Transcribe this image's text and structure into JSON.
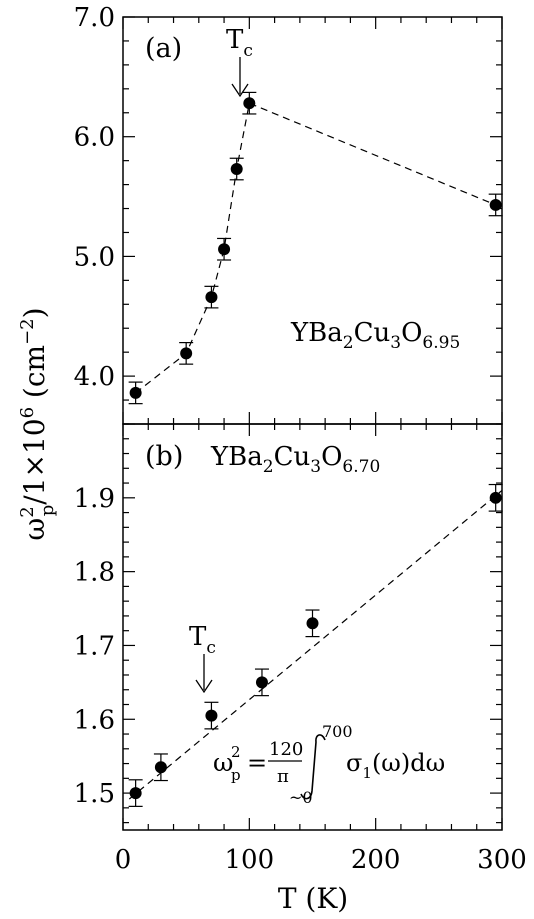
{
  "chart_data": [
    {
      "type": "scatter",
      "panel_label": "(a)",
      "sample_label": {
        "base": "YBa",
        "sub1": "2",
        "mid": "Cu",
        "sub2": "3",
        "o": "O",
        "sub3": "6.95"
      },
      "tc_label": {
        "main": "T",
        "sub": "c"
      },
      "tc_value": 93,
      "xlim": [
        0,
        300
      ],
      "ylim": [
        3.6,
        7.0
      ],
      "y_ticks": [
        "4.0",
        "5.0",
        "6.0",
        "7.0"
      ],
      "points": [
        {
          "x": 10,
          "y": 3.86,
          "err": 0.09
        },
        {
          "x": 50,
          "y": 4.19,
          "err": 0.09
        },
        {
          "x": 70,
          "y": 4.66,
          "err": 0.09
        },
        {
          "x": 80,
          "y": 5.06,
          "err": 0.09
        },
        {
          "x": 90,
          "y": 5.73,
          "err": 0.09
        },
        {
          "x": 100,
          "y": 6.28,
          "err": 0.09
        },
        {
          "x": 295,
          "y": 5.43,
          "err": 0.09
        }
      ],
      "fit_line": [
        [
          10,
          3.86
        ],
        [
          50,
          4.19
        ],
        [
          70,
          4.66
        ],
        [
          80,
          5.06
        ],
        [
          90,
          5.73
        ],
        [
          100,
          6.28
        ],
        [
          295,
          5.43
        ]
      ]
    },
    {
      "type": "scatter",
      "panel_label": "(b)",
      "sample_label": {
        "base": "YBa",
        "sub1": "2",
        "mid": "Cu",
        "sub2": "3",
        "o": "O",
        "sub3": "6.70"
      },
      "tc_label": {
        "main": "T",
        "sub": "c"
      },
      "tc_value": 63,
      "xlim": [
        0,
        300
      ],
      "ylim": [
        1.45,
        2.0
      ],
      "y_ticks": [
        "1.5",
        "1.6",
        "1.7",
        "1.8",
        "1.9"
      ],
      "points": [
        {
          "x": 10,
          "y": 1.5,
          "err": 0.018
        },
        {
          "x": 30,
          "y": 1.535,
          "err": 0.018
        },
        {
          "x": 70,
          "y": 1.605,
          "err": 0.018
        },
        {
          "x": 110,
          "y": 1.65,
          "err": 0.018
        },
        {
          "x": 150,
          "y": 1.73,
          "err": 0.018
        },
        {
          "x": 295,
          "y": 1.9,
          "err": 0.018
        }
      ],
      "fit_line": [
        [
          5,
          1.492
        ],
        [
          300,
          1.91
        ]
      ]
    }
  ],
  "x_ticks": [
    "0",
    "100",
    "200",
    "300"
  ],
  "xlabel": "T (K)",
  "ylabel": {
    "omega": "ω",
    "sup": "2",
    "sub": "p",
    "rest": "/1×10",
    "exp": "6",
    "units": " (cm",
    "units_exp": "−2",
    "close": ")"
  },
  "formula": {
    "lhs": "ω",
    "lhs_sup": "2",
    "lhs_sub": "p",
    "eq": "=",
    "num": "120",
    "den": "π",
    "integrand": "σ",
    "integrand_sub": "1",
    "arg": "(ω)dω",
    "upper": "700",
    "lower": "~0"
  }
}
